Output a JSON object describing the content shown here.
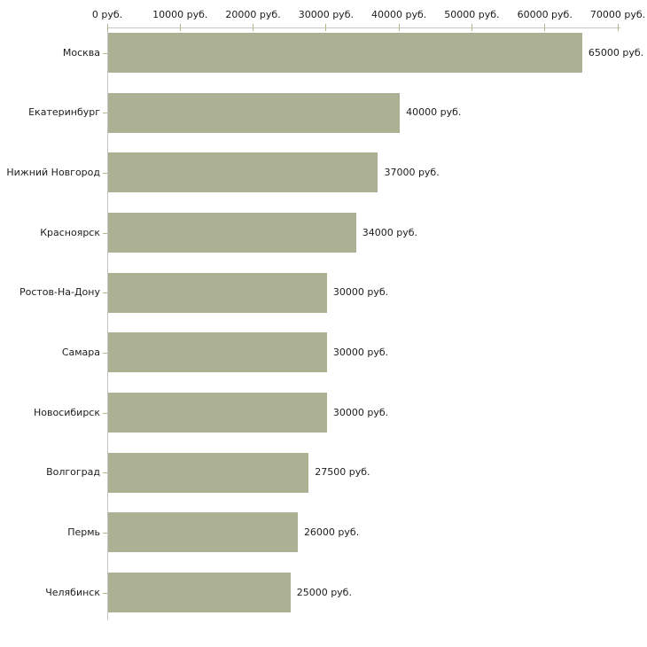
{
  "chart_data": {
    "type": "bar",
    "orientation": "horizontal",
    "title": "",
    "xlabel": "",
    "ylabel": "",
    "unit": "руб.",
    "categories": [
      "Москва",
      "Екатеринбург",
      "Нижний Новгород",
      "Красноярск",
      "Ростов-На-Дону",
      "Самара",
      "Новосибирск",
      "Волгоград",
      "Пермь",
      "Челябинск"
    ],
    "values": [
      65000,
      40000,
      37000,
      34000,
      30000,
      30000,
      30000,
      27500,
      26000,
      25000
    ],
    "value_labels": [
      "65000 руб.",
      "40000 руб.",
      "37000 руб.",
      "34000 руб.",
      "30000 руб.",
      "30000 руб.",
      "30000 руб.",
      "27500 руб.",
      "26000 руб.",
      "25000 руб."
    ],
    "xlim": [
      0,
      70000
    ],
    "x_ticks": [
      0,
      10000,
      20000,
      30000,
      40000,
      50000,
      60000,
      70000
    ],
    "x_tick_labels": [
      "0 руб.",
      "10000 руб.",
      "20000 руб.",
      "30000 руб.",
      "40000 руб.",
      "50000 руб.",
      "60000 руб.",
      "70000 руб."
    ],
    "axis_position": "top",
    "grid": false,
    "legend": false,
    "bar_color": "#acb193",
    "axis_color": "#c6c6c6",
    "tick_color": "#b3b787",
    "text_color": "#1c1c1c",
    "background_color": "#ffffff"
  }
}
